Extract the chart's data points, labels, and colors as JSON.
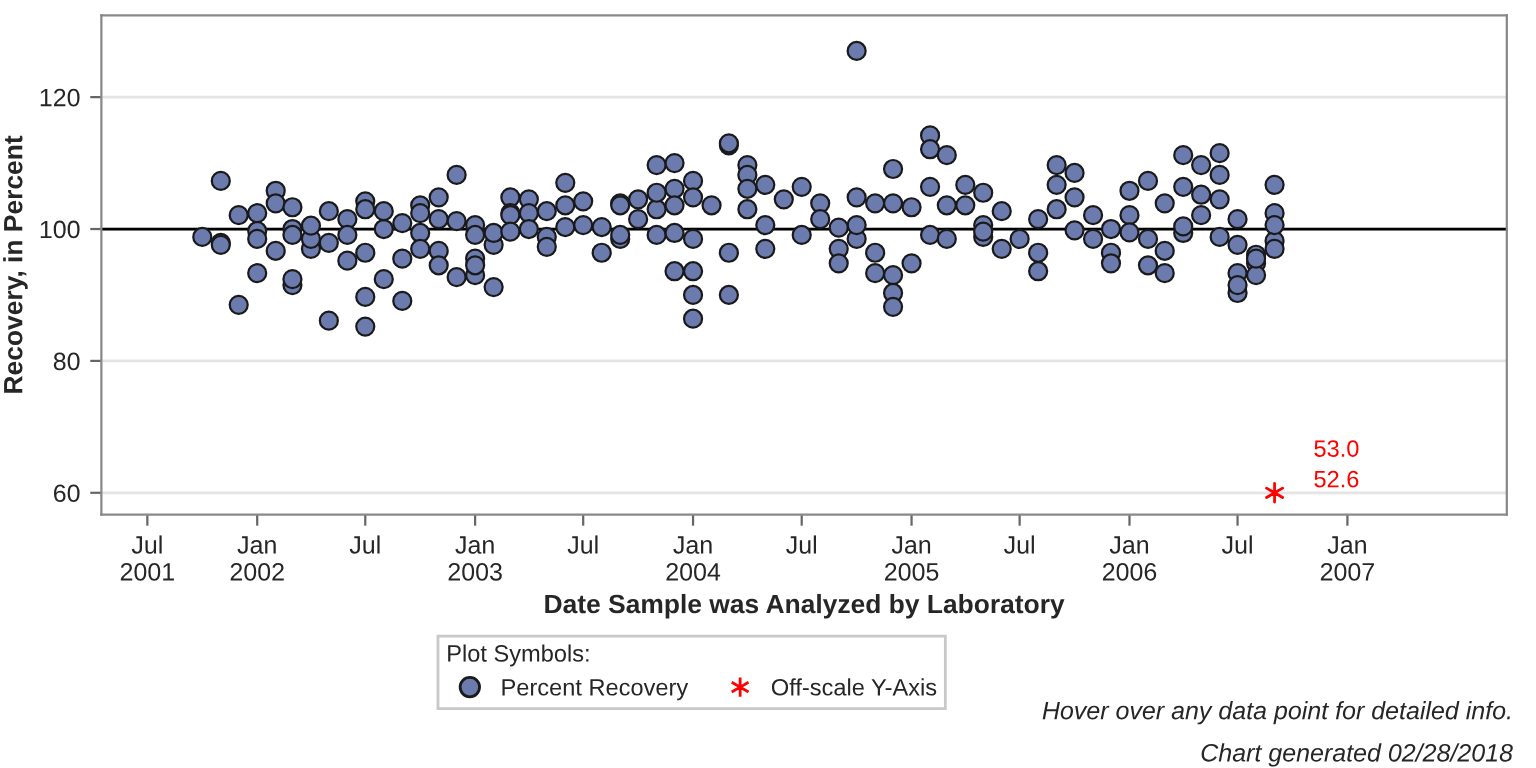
{
  "chart_data": {
    "type": "scatter",
    "xlabel": "Date Sample was Analyzed by Laboratory",
    "ylabel": "Recovery, in Percent",
    "legend_title": "Plot Symbols:",
    "legend": "bottom",
    "grid": "y",
    "xlim": [
      "2001-04-15",
      "2007-09-25"
    ],
    "ylim": [
      56.7,
      132.4
    ],
    "xticks": [
      {
        "value": "2001-07",
        "label": "Jul\n2001"
      },
      {
        "value": "2002-01",
        "label": "Jan\n2002"
      },
      {
        "value": "2002-07",
        "label": "Jul"
      },
      {
        "value": "2003-01",
        "label": "Jan\n2003"
      },
      {
        "value": "2003-07",
        "label": "Jul"
      },
      {
        "value": "2004-01",
        "label": "Jan\n2004"
      },
      {
        "value": "2004-07",
        "label": "Jul"
      },
      {
        "value": "2005-01",
        "label": "Jan\n2005"
      },
      {
        "value": "2005-07",
        "label": "Jul"
      },
      {
        "value": "2006-01",
        "label": "Jan\n2006"
      },
      {
        "value": "2006-07",
        "label": "Jul"
      },
      {
        "value": "2007-01",
        "label": "Jan\n2007"
      }
    ],
    "yticks": [
      60,
      80,
      100,
      120
    ],
    "ref_lines": [
      {
        "axis": "y",
        "value": 100,
        "color": "#000000"
      }
    ],
    "series": [
      {
        "name": "Percent Recovery",
        "color": "#6c7bae",
        "marker": "circle",
        "x": [
          "2001-11",
          "2001-10",
          "2001-11",
          "2001-12",
          "2001-11",
          "2001-12",
          "2002-01",
          "2002-01",
          "2002-01",
          "2002-01",
          "2002-02",
          "2002-02",
          "2002-02",
          "2002-03",
          "2002-03",
          "2002-03",
          "2002-03",
          "2002-03",
          "2002-04",
          "2002-04",
          "2002-05",
          "2002-05",
          "2002-05",
          "2002-06",
          "2002-06",
          "2002-06",
          "2002-07",
          "2002-07",
          "2002-07",
          "2002-07",
          "2002-07",
          "2002-08",
          "2002-08",
          "2002-08",
          "2002-09",
          "2002-09",
          "2002-09",
          "2002-10",
          "2002-10",
          "2002-10",
          "2002-10",
          "2002-11",
          "2002-11",
          "2002-11",
          "2002-11",
          "2002-12",
          "2002-12",
          "2002-12",
          "2003-01",
          "2003-01",
          "2003-01",
          "2003-01",
          "2003-01",
          "2003-02",
          "2003-02",
          "2003-02",
          "2003-03",
          "2003-03",
          "2003-03",
          "2003-04",
          "2003-04",
          "2003-04",
          "2003-05",
          "2003-05",
          "2003-05",
          "2003-06",
          "2003-06",
          "2003-07",
          "2003-07",
          "2003-08",
          "2003-08",
          "2003-09",
          "2003-09",
          "2003-09",
          "2003-09",
          "2003-10",
          "2003-10",
          "2003-11",
          "2003-11",
          "2003-11",
          "2003-11",
          "2003-12",
          "2003-12",
          "2003-12",
          "2003-12",
          "2003-12",
          "2004-01",
          "2004-01",
          "2004-01",
          "2004-01",
          "2004-01",
          "2004-01",
          "2004-02",
          "2004-03",
          "2004-03",
          "2004-03",
          "2004-03",
          "2004-04",
          "2004-04",
          "2004-04",
          "2004-04",
          "2004-05",
          "2004-05",
          "2004-05",
          "2004-06",
          "2004-07",
          "2004-07",
          "2004-08",
          "2004-08",
          "2004-09",
          "2004-09",
          "2004-10",
          "2004-10",
          "2004-10",
          "2004-10",
          "2004-11",
          "2004-11",
          "2004-11",
          "2004-12",
          "2004-12",
          "2004-12",
          "2004-12",
          "2004-12",
          "2005-01",
          "2005-01",
          "2005-02",
          "2005-02",
          "2005-02",
          "2005-02",
          "2005-03",
          "2005-03",
          "2005-03",
          "2005-04",
          "2005-04",
          "2005-05",
          "2005-05",
          "2005-05",
          "2005-06",
          "2005-06",
          "2005-07",
          "2005-08",
          "2005-08",
          "2005-08",
          "2005-09",
          "2005-09",
          "2005-10",
          "2005-09",
          "2005-10",
          "2005-11",
          "2005-11",
          "2005-12",
          "2005-12",
          "2005-12",
          "2006-01",
          "2006-01",
          "2006-02",
          "2006-02",
          "2006-02",
          "2006-03",
          "2006-03",
          "2006-03",
          "2006-04",
          "2006-04",
          "2006-04",
          "2006-05",
          "2006-05",
          "2006-05",
          "2006-06",
          "2006-06",
          "2006-06",
          "2006-06",
          "2006-07",
          "2006-07",
          "2006-07",
          "2006-07",
          "2006-07",
          "2006-08",
          "2006-08",
          "2006-09",
          "2006-09",
          "2006-09",
          "2006-09",
          "2006-09",
          "2006-08",
          "2006-08",
          "2002-04",
          "2003-03",
          "2003-06",
          "2004-09",
          "2005-05",
          "2005-10",
          "2006-01",
          "2006-04"
        ],
        "values": [
          107.3,
          98.8,
          97.9,
          102.1,
          97.6,
          88.5,
          99.7,
          102.4,
          93.3,
          98.5,
          105.8,
          96.7,
          103.9,
          103.3,
          100,
          99.1,
          91.5,
          92.4,
          97,
          98.5,
          97.9,
          102.7,
          86.1,
          101.5,
          99.1,
          95.2,
          104.2,
          96.4,
          89.7,
          103,
          85.2,
          100,
          92.4,
          102.7,
          95.5,
          89.1,
          100.9,
          99.4,
          103.6,
          97,
          102.4,
          104.8,
          101.5,
          96.7,
          94.5,
          108.2,
          92.7,
          101.2,
          95.5,
          93,
          100.6,
          99.1,
          94.5,
          91.2,
          97.6,
          99.4,
          104.8,
          102.4,
          102.1,
          104.5,
          102.4,
          100,
          98.8,
          97.3,
          102.7,
          103.6,
          107,
          100.6,
          104.2,
          100.3,
          96.4,
          103.9,
          98.5,
          99.1,
          103.6,
          104.5,
          101.5,
          99.1,
          103,
          109.7,
          105.5,
          99.4,
          110,
          106.1,
          103.6,
          93.6,
          90,
          93.6,
          86.4,
          107.3,
          104.8,
          98.5,
          103.6,
          96.4,
          112.7,
          113,
          90,
          109.7,
          108.2,
          106.1,
          103,
          106.7,
          100.6,
          97,
          104.5,
          106.4,
          99.1,
          103.9,
          101.5,
          97,
          94.8,
          98.5,
          104.8,
          100.6,
          127,
          103.9,
          96.4,
          93.3,
          109.1,
          103.9,
          93,
          90.3,
          88.2,
          94.8,
          103.3,
          114.2,
          112.1,
          99.1,
          106.4,
          103.6,
          111.2,
          98.5,
          106.7,
          103.6,
          98.8,
          105.5,
          100.6,
          102.7,
          97,
          98.5,
          96.4,
          93.6,
          101.5,
          106.7,
          109.7,
          108.5,
          103,
          104.8,
          98.5,
          102.1,
          96.4,
          94.8,
          100,
          102.1,
          105.8,
          107.3,
          98.5,
          94.5,
          96.7,
          103.9,
          93.3,
          111.2,
          106.4,
          99.4,
          109.7,
          105.2,
          102.1,
          108.2,
          98.8,
          111.5,
          104.5,
          90.3,
          101.5,
          97.6,
          93.3,
          91.5,
          94.8,
          93,
          106.7,
          102.4,
          98.2,
          97,
          100.6,
          96.1,
          95.5,
          100.5,
          99.6,
          100.3,
          100.2,
          99.6,
          99.8,
          99.5,
          100.4
        ]
      },
      {
        "name": "Off-scale Y-Axis",
        "color": "#ff0000",
        "marker": "cross",
        "x": [
          "2006-09"
        ],
        "values": [
          60
        ]
      }
    ],
    "annotations": [
      {
        "text": "52.6",
        "x": "2006-09",
        "y": 60
      },
      {
        "text": "53.0",
        "x": "2006-09",
        "y": 60
      },
      "Hover over any data point for detailed info.",
      "Chart generated 02/28/2018"
    ]
  }
}
